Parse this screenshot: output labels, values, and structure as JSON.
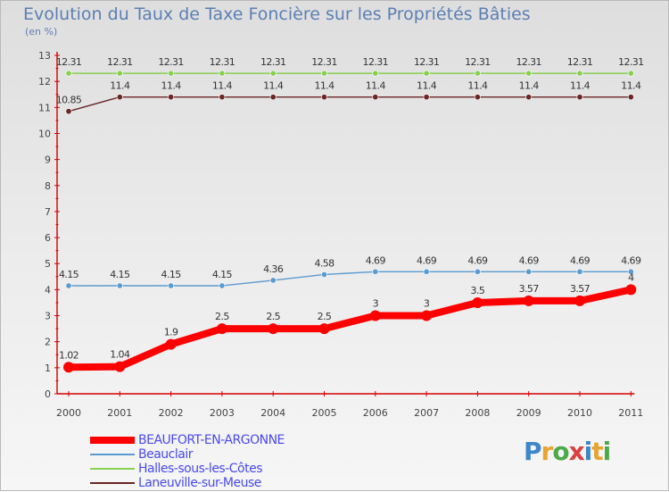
{
  "chart_data": {
    "type": "line",
    "title": "Evolution du Taux de Taxe Foncière sur les Propriétés Bâties",
    "subtitle": "(en %)",
    "xlabel": "",
    "ylabel": "",
    "x": [
      "2000",
      "2001",
      "2002",
      "2003",
      "2004",
      "2005",
      "2006",
      "2007",
      "2008",
      "2009",
      "2010",
      "2011"
    ],
    "ylim": [
      0,
      13
    ],
    "yticks": [
      0,
      1,
      2,
      3,
      4,
      5,
      6,
      7,
      8,
      9,
      10,
      11,
      12,
      13
    ],
    "grid": false,
    "legend_position": "bottom-left",
    "series": [
      {
        "name": "BEAUFORT-EN-ARGONNE",
        "color": "#ff0000",
        "values": [
          1.02,
          1.04,
          1.9,
          2.5,
          2.5,
          2.5,
          3,
          3,
          3.5,
          3.57,
          3.57,
          4
        ],
        "labels": [
          "1.02",
          "1.04",
          "1.9",
          "2.5",
          "2.5",
          "2.5",
          "3",
          "3",
          "3.5",
          "3.57",
          "3.57",
          "4"
        ]
      },
      {
        "name": "Beauclair",
        "color": "#5a9bd0",
        "values": [
          4.15,
          4.15,
          4.15,
          4.15,
          4.36,
          4.58,
          4.69,
          4.69,
          4.69,
          4.69,
          4.69,
          4.69
        ],
        "labels": [
          "4.15",
          "4.15",
          "4.15",
          "4.15",
          "4.36",
          "4.58",
          "4.69",
          "4.69",
          "4.69",
          "4.69",
          "4.69",
          "4.69"
        ]
      },
      {
        "name": "Halles-sous-les-Côtes",
        "color": "#88d050",
        "values": [
          12.31,
          12.31,
          12.31,
          12.31,
          12.31,
          12.31,
          12.31,
          12.31,
          12.31,
          12.31,
          12.31,
          12.31
        ],
        "labels": [
          "12.31",
          "12.31",
          "12.31",
          "12.31",
          "12.31",
          "12.31",
          "12.31",
          "12.31",
          "12.31",
          "12.31",
          "12.31",
          "12.31"
        ]
      },
      {
        "name": "Laneuville-sur-Meuse",
        "color": "#6b2626",
        "values": [
          10.85,
          11.4,
          11.4,
          11.4,
          11.4,
          11.4,
          11.4,
          11.4,
          11.4,
          11.4,
          11.4,
          11.4
        ],
        "labels": [
          "10.85",
          "11.4",
          "11.4",
          "11.4",
          "11.4",
          "11.4",
          "11.4",
          "11.4",
          "11.4",
          "11.4",
          "11.4",
          "11.4"
        ]
      }
    ],
    "logo_text": "Proxiti"
  }
}
